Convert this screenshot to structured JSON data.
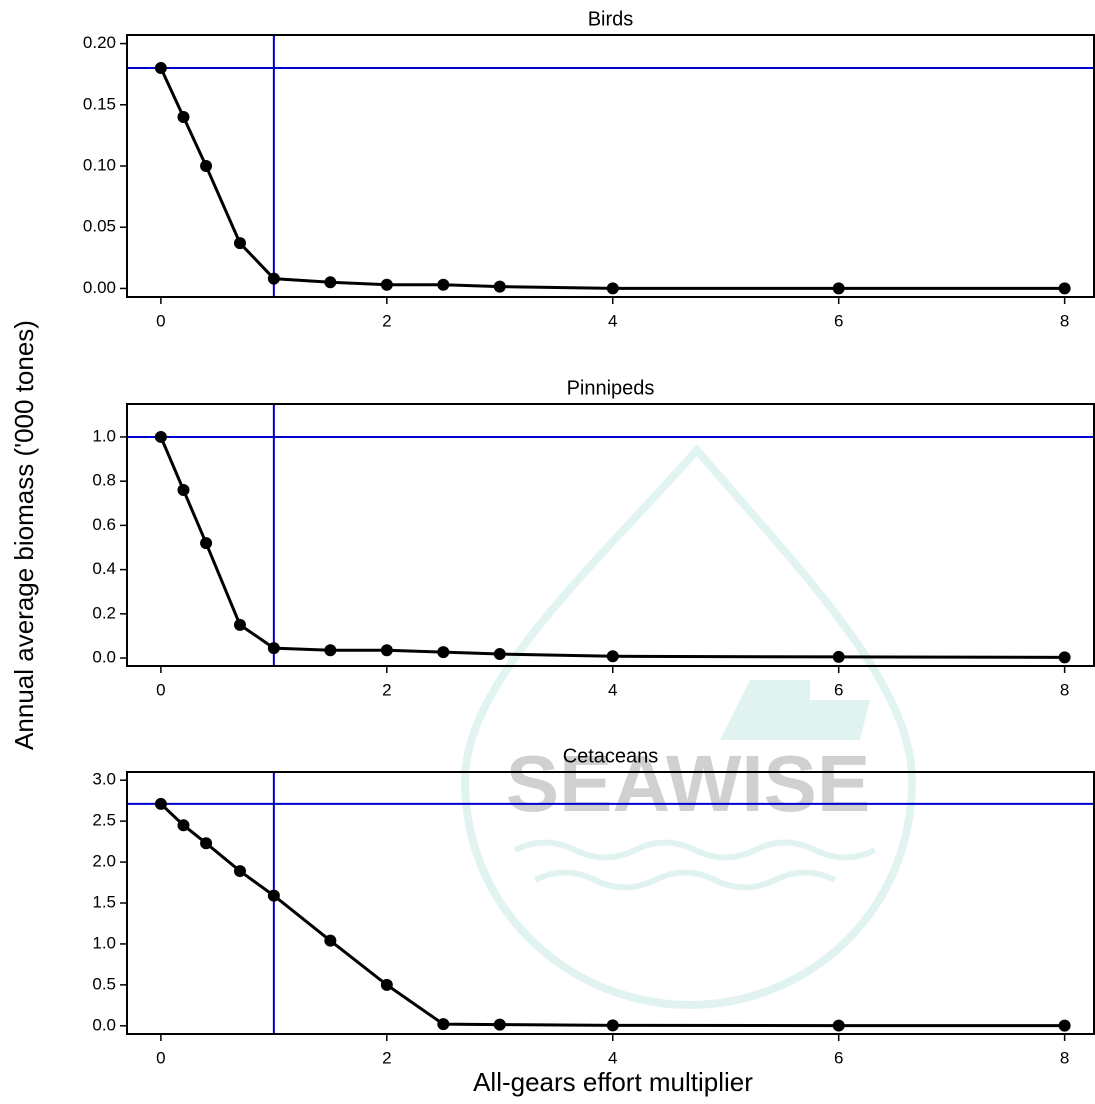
{
  "ylabel": "Annual average biomass ('000 tones)",
  "xlabel": "All-gears effort multiplier",
  "watermark": "SEAWISE",
  "chart_data": [
    {
      "type": "line",
      "title": "Birds",
      "x": [
        0,
        0.2,
        0.4,
        0.7,
        1,
        1.5,
        2,
        2.5,
        3,
        4,
        6,
        8
      ],
      "values": [
        0.18,
        0.14,
        0.1,
        0.037,
        0.008,
        0.005,
        0.003,
        0.003,
        0.0015,
        0,
        0,
        0
      ],
      "color": "#000000",
      "ref_color": "#0000cc",
      "hline": 0.18,
      "vline": 1,
      "xlim": [
        -0.3,
        8.26
      ],
      "xticks": [
        0,
        2,
        4,
        6,
        8
      ],
      "ylim": [
        -0.007,
        0.207
      ],
      "yticks": [
        {
          "value": 0,
          "label": "0.00"
        },
        {
          "value": 0.05,
          "label": "0.05"
        },
        {
          "value": 0.1,
          "label": "0.10"
        },
        {
          "value": 0.15,
          "label": "0.15"
        },
        {
          "value": 0.2,
          "label": "0.20"
        }
      ]
    },
    {
      "type": "line",
      "title": "Pinnipeds",
      "x": [
        0,
        0.2,
        0.4,
        0.7,
        1,
        1.5,
        2,
        2.5,
        3,
        4,
        6,
        8
      ],
      "values": [
        1.0,
        0.76,
        0.52,
        0.15,
        0.045,
        0.035,
        0.035,
        0.027,
        0.018,
        0.008,
        0.005,
        0.003
      ],
      "color": "#000000",
      "ref_color": "#0000cc",
      "hline": 1.0,
      "vline": 1,
      "xlim": [
        -0.3,
        8.26
      ],
      "xticks": [
        0,
        2,
        4,
        6,
        8
      ],
      "ylim": [
        -0.036,
        1.149
      ],
      "yticks": [
        {
          "value": 0,
          "label": "0.0"
        },
        {
          "value": 0.2,
          "label": "0.2"
        },
        {
          "value": 0.4,
          "label": "0.4"
        },
        {
          "value": 0.6,
          "label": "0.6"
        },
        {
          "value": 0.8,
          "label": "0.8"
        },
        {
          "value": 1,
          "label": "1.0"
        }
      ]
    },
    {
      "type": "line",
      "title": "Cetaceans",
      "x": [
        0,
        0.2,
        0.4,
        0.7,
        1,
        1.5,
        2,
        2.5,
        3,
        4,
        6,
        8
      ],
      "values": [
        2.71,
        2.45,
        2.23,
        1.89,
        1.59,
        1.04,
        0.5,
        0.02,
        0.015,
        0.005,
        0.003,
        0.002
      ],
      "color": "#000000",
      "ref_color": "#0000cc",
      "hline": 2.71,
      "vline": 1,
      "xlim": [
        -0.3,
        8.26
      ],
      "xticks": [
        0,
        2,
        4,
        6,
        8
      ],
      "ylim": [
        -0.1,
        3.1
      ],
      "yticks": [
        {
          "value": 0,
          "label": "0.0"
        },
        {
          "value": 0.5,
          "label": "0.5"
        },
        {
          "value": 1,
          "label": "1.0"
        },
        {
          "value": 1.5,
          "label": "1.5"
        },
        {
          "value": 2,
          "label": "2.0"
        },
        {
          "value": 2.5,
          "label": "2.5"
        },
        {
          "value": 3,
          "label": "3.0"
        }
      ]
    }
  ]
}
